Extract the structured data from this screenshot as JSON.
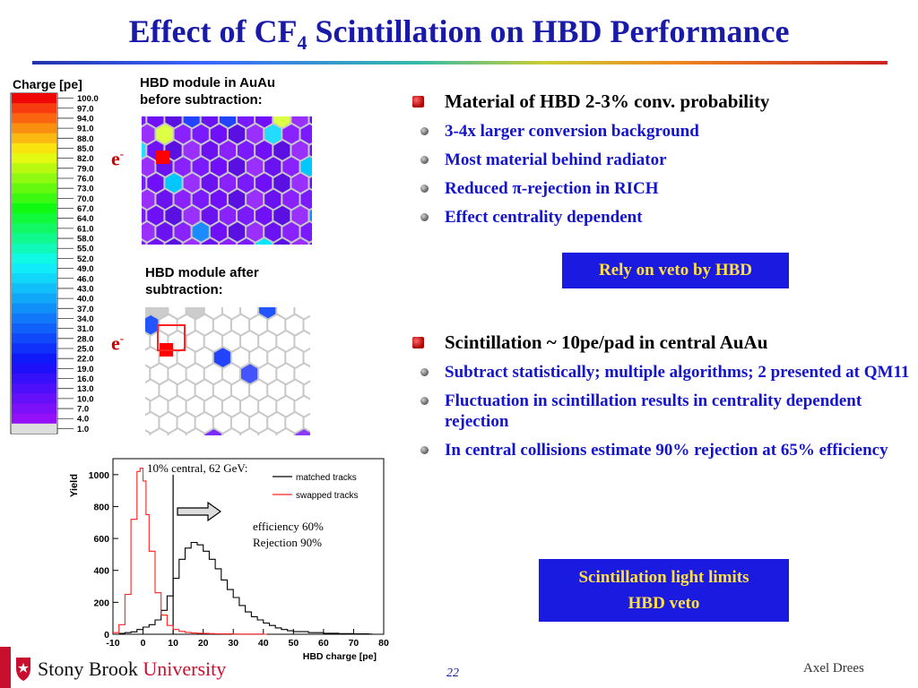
{
  "title": {
    "main": "Effect of CF",
    "sub": "4",
    "rest": " Scintillation on HBD Performance"
  },
  "colorscale": {
    "title": "Charge [pe]",
    "labels": [
      "100.0",
      "97.0",
      "94.0",
      "91.0",
      "88.0",
      "85.0",
      "82.0",
      "79.0",
      "76.0",
      "73.0",
      "70.0",
      "67.0",
      "64.0",
      "61.0",
      "58.0",
      "55.0",
      "52.0",
      "49.0",
      "46.0",
      "43.0",
      "40.0",
      "37.0",
      "34.0",
      "31.0",
      "28.0",
      "25.0",
      "22.0",
      "19.0",
      "16.0",
      "13.0",
      "10.0",
      "7.0",
      "4.0",
      "1.0"
    ]
  },
  "panel_top": {
    "caption_line1": "HBD module in AuAu",
    "caption_line2": "before subtraction:",
    "eminus": "e",
    "eminus_sup": "-"
  },
  "panel_bottom": {
    "caption_line1": "HBD module after",
    "caption_line2": "subtraction:",
    "eminus": "e",
    "eminus_sup": "-"
  },
  "bullets1": {
    "main": "Material of HBD 2-3% conv. probability",
    "subs": [
      "3-4x larger conversion background",
      "Most material behind radiator",
      "Reduced π-rejection in RICH",
      "Effect centrality dependent"
    ]
  },
  "box1": "Rely on veto by HBD",
  "bullets2": {
    "main": "Scintillation ~ 10pe/pad in central AuAu",
    "subs": [
      "Subtract statistically; multiple algorithms; 2 presented at QM11",
      "Fluctuation in scintillation results in centrality dependent rejection",
      "In central collisions estimate 90% rejection at 65% efficiency"
    ]
  },
  "box2": {
    "line1": "Scintillation light limits",
    "line2": "HBD veto"
  },
  "footer": {
    "logo_a": "Stony Brook",
    "logo_b": "University",
    "page": "22",
    "author": "Axel Drees"
  },
  "chart_data": {
    "type": "line",
    "title": "10% central, 62 GeV:",
    "xlabel": "HBD charge [pe]",
    "ylabel": "Yield",
    "xlim": [
      -10,
      80
    ],
    "ylim": [
      0,
      1100
    ],
    "xticks": [
      -10,
      0,
      10,
      20,
      30,
      40,
      50,
      60,
      70,
      80
    ],
    "yticks": [
      0,
      200,
      400,
      600,
      800,
      1000
    ],
    "annotations": [
      "efficiency 60%",
      "Rejection 90%"
    ],
    "cut_x": 10,
    "series": [
      {
        "name": "matched tracks",
        "color": "#000000",
        "x": [
          -8,
          -6,
          -4,
          -2,
          0,
          2,
          4,
          6,
          8,
          10,
          12,
          14,
          16,
          18,
          20,
          22,
          24,
          26,
          28,
          30,
          32,
          34,
          36,
          38,
          40,
          42,
          44,
          46,
          48,
          50,
          55,
          60,
          65,
          70,
          75
        ],
        "y": [
          5,
          10,
          15,
          30,
          45,
          60,
          90,
          150,
          240,
          350,
          470,
          540,
          575,
          560,
          520,
          470,
          410,
          340,
          280,
          230,
          180,
          140,
          110,
          90,
          70,
          55,
          40,
          30,
          22,
          16,
          10,
          6,
          4,
          2,
          1
        ]
      },
      {
        "name": "swapped tracks",
        "color": "#ff2020",
        "x": [
          -10,
          -8,
          -6,
          -4,
          -2,
          -1,
          0,
          1,
          2,
          4,
          6,
          8,
          10,
          12,
          14,
          16,
          18,
          20,
          22,
          24,
          26,
          30,
          35,
          40
        ],
        "y": [
          10,
          60,
          250,
          720,
          1020,
          1040,
          960,
          750,
          520,
          260,
          120,
          55,
          30,
          18,
          12,
          8,
          6,
          5,
          4,
          3,
          2,
          1,
          1,
          0
        ]
      }
    ]
  }
}
